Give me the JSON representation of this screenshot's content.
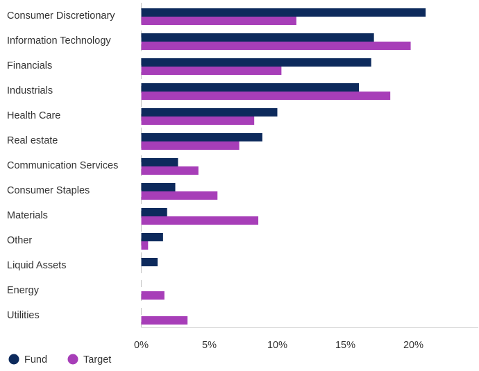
{
  "chart_data": {
    "type": "bar",
    "orientation": "horizontal",
    "categories": [
      "Consumer Discretionary",
      "Information Technology",
      "Financials",
      "Industrials",
      "Health Care",
      "Real estate",
      "Communication Services",
      "Consumer Staples",
      "Materials",
      "Other",
      "Liquid Assets",
      "Energy",
      "Utilities"
    ],
    "series": [
      {
        "name": "Fund",
        "color": "#0d2a5c",
        "values": [
          20.9,
          17.1,
          16.9,
          16.0,
          10.0,
          8.9,
          2.7,
          2.5,
          1.9,
          1.6,
          1.2,
          0.0,
          0.0
        ]
      },
      {
        "name": "Target",
        "color": "#a73eb8",
        "values": [
          11.4,
          19.8,
          10.3,
          18.3,
          8.3,
          7.2,
          4.2,
          5.6,
          8.6,
          0.5,
          0.0,
          1.7,
          3.4
        ]
      }
    ],
    "xlim": [
      0,
      25
    ],
    "xticks": [
      0,
      5,
      10,
      15,
      20
    ],
    "xtick_labels": [
      "0%",
      "5%",
      "10%",
      "15%",
      "20%"
    ],
    "grid": false,
    "legend_position": "bottom-left",
    "title": "",
    "xlabel": "",
    "ylabel": ""
  }
}
